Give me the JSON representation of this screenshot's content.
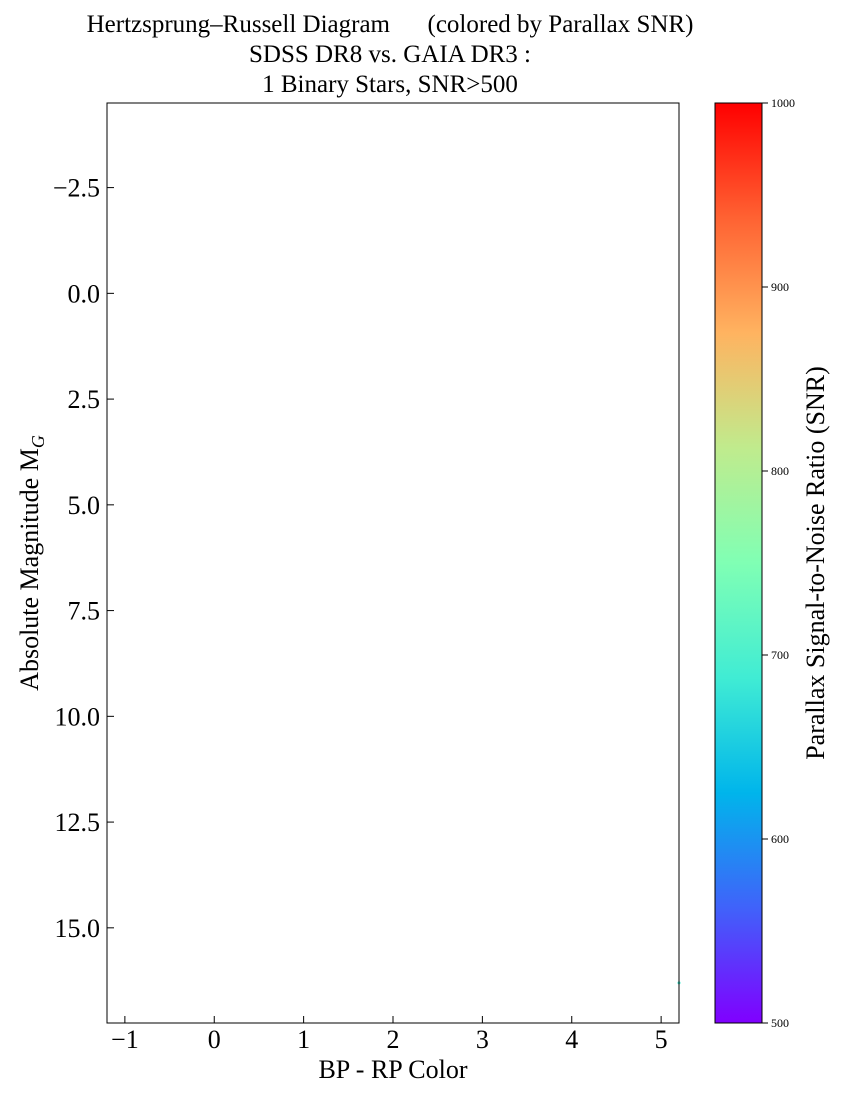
{
  "chart_data": {
    "type": "scatter",
    "title_lines": [
      "Hertzsprung–Russell Diagram      (colored by Parallax SNR)",
      "SDSS DR8 vs. GAIA DR3 :",
      "1 Binary Stars, SNR>500"
    ],
    "xlabel": "BP - RP Color",
    "ylabel": "Absolute Magnitude M",
    "ylabel_subscript": "G",
    "xlim": [
      -1.2,
      5.2
    ],
    "ylim": [
      17.25,
      -4.5
    ],
    "y_inverted": true,
    "xticks": [
      -1,
      0,
      1,
      2,
      3,
      4,
      5
    ],
    "xtick_labels": [
      "−1",
      "0",
      "1",
      "2",
      "3",
      "4",
      "5"
    ],
    "yticks": [
      -2.5,
      0,
      2.5,
      5,
      7.5,
      10,
      12.5,
      15
    ],
    "ytick_labels": [
      "−2.5",
      "0.0",
      "2.5",
      "5.0",
      "7.5",
      "10.0",
      "12.5",
      "15.0"
    ],
    "grid": false,
    "points": [
      {
        "x": 5.2,
        "y": 16.3,
        "snr": 690
      }
    ],
    "colorbar": {
      "label": "Parallax Signal-to-Noise Ratio (SNR)",
      "cmap": "rainbow",
      "range": [
        500,
        1000
      ],
      "ticks": [
        500,
        600,
        700,
        800,
        900,
        1000
      ],
      "tick_labels": [
        "500",
        "600",
        "700",
        "800",
        "900",
        "1000"
      ]
    }
  }
}
